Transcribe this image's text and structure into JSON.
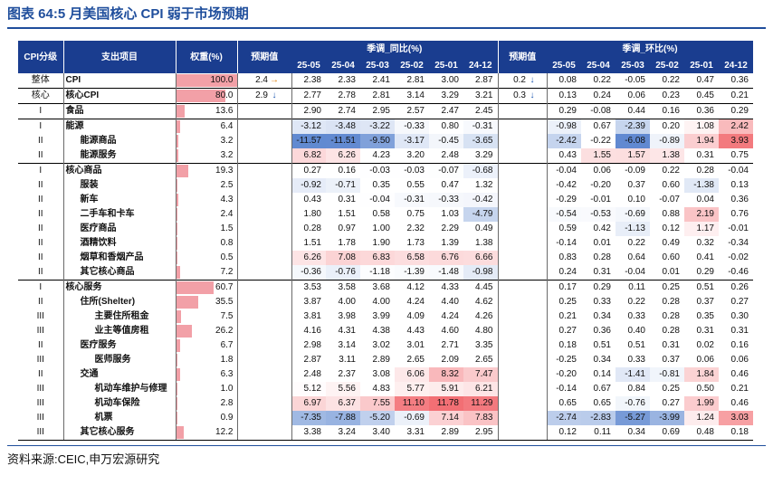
{
  "title": "图表 64:5 月美国核心 CPI 弱于市场预期",
  "source": "资料来源:CEIC,申万宏源研究",
  "headers": {
    "level": "CPI分级",
    "item": "支出项目",
    "weight": "权重(%)",
    "expected": "预期值",
    "yoy_group": "季调_同比(%)",
    "mom_group": "季调_环比(%)",
    "periods": [
      "25-05",
      "25-04",
      "25-03",
      "25-02",
      "25-01",
      "24-12"
    ]
  },
  "colors": {
    "header": "#1a3d8f",
    "weight_bar": "#f2a0a7",
    "up_arrow": "#e07b00",
    "down_arrow": "#1a55b0"
  },
  "rows": [
    {
      "level": "整体",
      "name": "CPI",
      "indent": 0,
      "weight": 100.0,
      "weight_label": "100.0",
      "yoy_exp": "2.4",
      "yoy_arrow": "→",
      "mom_exp": "0.2",
      "mom_arrow": "↓",
      "yoy": [
        2.38,
        2.33,
        2.41,
        2.81,
        3.0,
        2.87
      ],
      "yoy_label": [
        "2.38",
        "2.33",
        "2.41",
        "2.81",
        "3.00",
        "2.87"
      ],
      "mom": [
        0.08,
        0.22,
        -0.05,
        0.22,
        0.47,
        0.36
      ],
      "mom_label": [
        "0.08",
        "0.22",
        "-0.05",
        "0.22",
        "0.47",
        "0.36"
      ],
      "style": ""
    },
    {
      "level": "核心",
      "name": "核心CPI",
      "indent": 0,
      "weight": 80.0,
      "weight_label": "80.0",
      "yoy_exp": "2.9",
      "yoy_arrow": "↓",
      "mom_exp": "0.3",
      "mom_arrow": "↓",
      "yoy": [
        2.77,
        2.78,
        2.81,
        3.14,
        3.29,
        3.21
      ],
      "yoy_label": [
        "2.77",
        "2.78",
        "2.81",
        "3.14",
        "3.29",
        "3.21"
      ],
      "mom": [
        0.13,
        0.24,
        0.06,
        0.23,
        0.45,
        0.21
      ],
      "mom_label": [
        "0.13",
        "0.24",
        "0.06",
        "0.23",
        "0.45",
        "0.21"
      ],
      "style": "thin"
    },
    {
      "level": "I",
      "name": "食品",
      "indent": 0,
      "weight": 13.6,
      "weight_label": "13.6",
      "yoy_exp": "",
      "yoy_arrow": "",
      "mom_exp": "",
      "mom_arrow": "",
      "yoy": [
        2.9,
        2.74,
        2.95,
        2.57,
        2.47,
        2.45
      ],
      "yoy_label": [
        "2.90",
        "2.74",
        "2.95",
        "2.57",
        "2.47",
        "2.45"
      ],
      "mom": [
        0.29,
        -0.08,
        0.44,
        0.16,
        0.36,
        0.29
      ],
      "mom_label": [
        "0.29",
        "-0.08",
        "0.44",
        "0.16",
        "0.36",
        "0.29"
      ],
      "style": "sep"
    },
    {
      "level": "I",
      "name": "能源",
      "indent": 0,
      "weight": 6.4,
      "weight_label": "6.4",
      "yoy_exp": "",
      "yoy_arrow": "",
      "mom_exp": "",
      "mom_arrow": "",
      "yoy": [
        -3.12,
        -3.48,
        -3.22,
        -0.33,
        0.8,
        -0.31
      ],
      "yoy_label": [
        "-3.12",
        "-3.48",
        "-3.22",
        "-0.33",
        "0.80",
        "-0.31"
      ],
      "mom": [
        -0.98,
        0.67,
        -2.39,
        0.2,
        1.08,
        2.42
      ],
      "mom_label": [
        "-0.98",
        "0.67",
        "-2.39",
        "0.20",
        "1.08",
        "2.42"
      ],
      "style": "sep"
    },
    {
      "level": "II",
      "name": "能源商品",
      "indent": 1,
      "weight": 3.2,
      "weight_label": "3.2",
      "yoy_exp": "",
      "yoy_arrow": "",
      "mom_exp": "",
      "mom_arrow": "",
      "yoy": [
        -11.57,
        -11.51,
        -9.5,
        -3.17,
        -0.45,
        -3.65
      ],
      "yoy_label": [
        "-11.57",
        "-11.51",
        "-9.50",
        "-3.17",
        "-0.45",
        "-3.65"
      ],
      "mom": [
        -2.42,
        -0.22,
        -6.08,
        -0.89,
        1.94,
        3.93
      ],
      "mom_label": [
        "-2.42",
        "-0.22",
        "-6.08",
        "-0.89",
        "1.94",
        "3.93"
      ],
      "style": ""
    },
    {
      "level": "II",
      "name": "能源服务",
      "indent": 1,
      "weight": 3.2,
      "weight_label": "3.2",
      "yoy_exp": "",
      "yoy_arrow": "",
      "mom_exp": "",
      "mom_arrow": "",
      "yoy": [
        6.82,
        6.26,
        4.23,
        3.2,
        2.48,
        3.29
      ],
      "yoy_label": [
        "6.82",
        "6.26",
        "4.23",
        "3.20",
        "2.48",
        "3.29"
      ],
      "mom": [
        0.43,
        1.55,
        1.57,
        1.38,
        0.31,
        0.75
      ],
      "mom_label": [
        "0.43",
        "1.55",
        "1.57",
        "1.38",
        "0.31",
        "0.75"
      ],
      "style": ""
    },
    {
      "level": "I",
      "name": "核心商品",
      "indent": 0,
      "weight": 19.3,
      "weight_label": "19.3",
      "yoy_exp": "",
      "yoy_arrow": "",
      "mom_exp": "",
      "mom_arrow": "",
      "yoy": [
        0.27,
        0.16,
        -0.03,
        -0.03,
        -0.07,
        -0.68
      ],
      "yoy_label": [
        "0.27",
        "0.16",
        "-0.03",
        "-0.03",
        "-0.07",
        "-0.68"
      ],
      "mom": [
        -0.04,
        0.06,
        -0.09,
        0.22,
        0.28,
        -0.04
      ],
      "mom_label": [
        "-0.04",
        "0.06",
        "-0.09",
        "0.22",
        "0.28",
        "-0.04"
      ],
      "style": "sep"
    },
    {
      "level": "II",
      "name": "服装",
      "indent": 1,
      "weight": 2.5,
      "weight_label": "2.5",
      "yoy_exp": "",
      "yoy_arrow": "",
      "mom_exp": "",
      "mom_arrow": "",
      "yoy": [
        -0.92,
        -0.71,
        0.35,
        0.55,
        0.47,
        1.32
      ],
      "yoy_label": [
        "-0.92",
        "-0.71",
        "0.35",
        "0.55",
        "0.47",
        "1.32"
      ],
      "mom": [
        -0.42,
        -0.2,
        0.37,
        0.6,
        -1.38,
        0.13
      ],
      "mom_label": [
        "-0.42",
        "-0.20",
        "0.37",
        "0.60",
        "-1.38",
        "0.13"
      ],
      "style": ""
    },
    {
      "level": "II",
      "name": "新车",
      "indent": 1,
      "weight": 4.3,
      "weight_label": "4.3",
      "yoy_exp": "",
      "yoy_arrow": "",
      "mom_exp": "",
      "mom_arrow": "",
      "yoy": [
        0.43,
        0.31,
        -0.04,
        -0.31,
        -0.33,
        -0.42
      ],
      "yoy_label": [
        "0.43",
        "0.31",
        "-0.04",
        "-0.31",
        "-0.33",
        "-0.42"
      ],
      "mom": [
        -0.29,
        -0.01,
        0.1,
        -0.07,
        0.04,
        0.36
      ],
      "mom_label": [
        "-0.29",
        "-0.01",
        "0.10",
        "-0.07",
        "0.04",
        "0.36"
      ],
      "style": ""
    },
    {
      "level": "II",
      "name": "二手车和卡车",
      "indent": 1,
      "weight": 2.4,
      "weight_label": "2.4",
      "yoy_exp": "",
      "yoy_arrow": "",
      "mom_exp": "",
      "mom_arrow": "",
      "yoy": [
        1.8,
        1.51,
        0.58,
        0.75,
        1.03,
        -4.79
      ],
      "yoy_label": [
        "1.80",
        "1.51",
        "0.58",
        "0.75",
        "1.03",
        "-4.79"
      ],
      "mom": [
        -0.54,
        -0.53,
        -0.69,
        0.88,
        2.19,
        0.76
      ],
      "mom_label": [
        "-0.54",
        "-0.53",
        "-0.69",
        "0.88",
        "2.19",
        "0.76"
      ],
      "style": ""
    },
    {
      "level": "II",
      "name": "医疗商品",
      "indent": 1,
      "weight": 1.5,
      "weight_label": "1.5",
      "yoy_exp": "",
      "yoy_arrow": "",
      "mom_exp": "",
      "mom_arrow": "",
      "yoy": [
        0.28,
        0.97,
        1.0,
        2.32,
        2.29,
        0.49
      ],
      "yoy_label": [
        "0.28",
        "0.97",
        "1.00",
        "2.32",
        "2.29",
        "0.49"
      ],
      "mom": [
        0.59,
        0.42,
        -1.13,
        0.12,
        1.17,
        -0.01
      ],
      "mom_label": [
        "0.59",
        "0.42",
        "-1.13",
        "0.12",
        "1.17",
        "-0.01"
      ],
      "style": ""
    },
    {
      "level": "II",
      "name": "酒精饮料",
      "indent": 1,
      "weight": 0.8,
      "weight_label": "0.8",
      "yoy_exp": "",
      "yoy_arrow": "",
      "mom_exp": "",
      "mom_arrow": "",
      "yoy": [
        1.51,
        1.78,
        1.9,
        1.73,
        1.39,
        1.38
      ],
      "yoy_label": [
        "1.51",
        "1.78",
        "1.90",
        "1.73",
        "1.39",
        "1.38"
      ],
      "mom": [
        -0.14,
        0.01,
        0.22,
        0.49,
        0.32,
        -0.34
      ],
      "mom_label": [
        "-0.14",
        "0.01",
        "0.22",
        "0.49",
        "0.32",
        "-0.34"
      ],
      "style": ""
    },
    {
      "level": "II",
      "name": "烟草和香烟产品",
      "indent": 1,
      "weight": 0.5,
      "weight_label": "0.5",
      "yoy_exp": "",
      "yoy_arrow": "",
      "mom_exp": "",
      "mom_arrow": "",
      "yoy": [
        6.26,
        7.08,
        6.83,
        6.58,
        6.76,
        6.66
      ],
      "yoy_label": [
        "6.26",
        "7.08",
        "6.83",
        "6.58",
        "6.76",
        "6.66"
      ],
      "mom": [
        0.83,
        0.28,
        0.64,
        0.6,
        0.41,
        -0.02
      ],
      "mom_label": [
        "0.83",
        "0.28",
        "0.64",
        "0.60",
        "0.41",
        "-0.02"
      ],
      "style": ""
    },
    {
      "level": "II",
      "name": "其它核心商品",
      "indent": 1,
      "weight": 7.2,
      "weight_label": "7.2",
      "yoy_exp": "",
      "yoy_arrow": "",
      "mom_exp": "",
      "mom_arrow": "",
      "yoy": [
        -0.36,
        -0.76,
        -1.18,
        -1.39,
        -1.48,
        -0.98
      ],
      "yoy_label": [
        "-0.36",
        "-0.76",
        "-1.18",
        "-1.39",
        "-1.48",
        "-0.98"
      ],
      "mom": [
        0.24,
        0.31,
        -0.04,
        0.01,
        0.29,
        -0.46
      ],
      "mom_label": [
        "0.24",
        "0.31",
        "-0.04",
        "0.01",
        "0.29",
        "-0.46"
      ],
      "style": ""
    },
    {
      "level": "I",
      "name": "核心服务",
      "indent": 0,
      "weight": 60.7,
      "weight_label": "60.7",
      "yoy_exp": "",
      "yoy_arrow": "",
      "mom_exp": "",
      "mom_arrow": "",
      "yoy": [
        3.53,
        3.58,
        3.68,
        4.12,
        4.33,
        4.45
      ],
      "yoy_label": [
        "3.53",
        "3.58",
        "3.68",
        "4.12",
        "4.33",
        "4.45"
      ],
      "mom": [
        0.17,
        0.29,
        0.11,
        0.25,
        0.51,
        0.26
      ],
      "mom_label": [
        "0.17",
        "0.29",
        "0.11",
        "0.25",
        "0.51",
        "0.26"
      ],
      "style": "sep"
    },
    {
      "level": "II",
      "name": "住所(Shelter)",
      "indent": 1,
      "weight": 35.5,
      "weight_label": "35.5",
      "yoy_exp": "",
      "yoy_arrow": "",
      "mom_exp": "",
      "mom_arrow": "",
      "yoy": [
        3.87,
        4.0,
        4.0,
        4.24,
        4.4,
        4.62
      ],
      "yoy_label": [
        "3.87",
        "4.00",
        "4.00",
        "4.24",
        "4.40",
        "4.62"
      ],
      "mom": [
        0.25,
        0.33,
        0.22,
        0.28,
        0.37,
        0.27
      ],
      "mom_label": [
        "0.25",
        "0.33",
        "0.22",
        "0.28",
        "0.37",
        "0.27"
      ],
      "style": ""
    },
    {
      "level": "III",
      "name": "主要住所租金",
      "indent": 2,
      "weight": 7.5,
      "weight_label": "7.5",
      "yoy_exp": "",
      "yoy_arrow": "",
      "mom_exp": "",
      "mom_arrow": "",
      "yoy": [
        3.81,
        3.98,
        3.99,
        4.09,
        4.24,
        4.26
      ],
      "yoy_label": [
        "3.81",
        "3.98",
        "3.99",
        "4.09",
        "4.24",
        "4.26"
      ],
      "mom": [
        0.21,
        0.34,
        0.33,
        0.28,
        0.35,
        0.3
      ],
      "mom_label": [
        "0.21",
        "0.34",
        "0.33",
        "0.28",
        "0.35",
        "0.30"
      ],
      "style": ""
    },
    {
      "level": "III",
      "name": "业主等值房租",
      "indent": 2,
      "weight": 26.2,
      "weight_label": "26.2",
      "yoy_exp": "",
      "yoy_arrow": "",
      "mom_exp": "",
      "mom_arrow": "",
      "yoy": [
        4.16,
        4.31,
        4.38,
        4.43,
        4.6,
        4.8
      ],
      "yoy_label": [
        "4.16",
        "4.31",
        "4.38",
        "4.43",
        "4.60",
        "4.80"
      ],
      "mom": [
        0.27,
        0.36,
        0.4,
        0.28,
        0.31,
        0.31
      ],
      "mom_label": [
        "0.27",
        "0.36",
        "0.40",
        "0.28",
        "0.31",
        "0.31"
      ],
      "style": ""
    },
    {
      "level": "II",
      "name": "医疗服务",
      "indent": 1,
      "weight": 6.7,
      "weight_label": "6.7",
      "yoy_exp": "",
      "yoy_arrow": "",
      "mom_exp": "",
      "mom_arrow": "",
      "yoy": [
        2.98,
        3.14,
        3.02,
        3.01,
        2.71,
        3.35
      ],
      "yoy_label": [
        "2.98",
        "3.14",
        "3.02",
        "3.01",
        "2.71",
        "3.35"
      ],
      "mom": [
        0.18,
        0.51,
        0.51,
        0.31,
        0.02,
        0.16
      ],
      "mom_label": [
        "0.18",
        "0.51",
        "0.51",
        "0.31",
        "0.02",
        "0.16"
      ],
      "style": ""
    },
    {
      "level": "III",
      "name": "医师服务",
      "indent": 2,
      "weight": 1.8,
      "weight_label": "1.8",
      "yoy_exp": "",
      "yoy_arrow": "",
      "mom_exp": "",
      "mom_arrow": "",
      "yoy": [
        2.87,
        3.11,
        2.89,
        2.65,
        2.09,
        2.65
      ],
      "yoy_label": [
        "2.87",
        "3.11",
        "2.89",
        "2.65",
        "2.09",
        "2.65"
      ],
      "mom": [
        -0.25,
        0.34,
        0.33,
        0.37,
        0.06,
        0.06
      ],
      "mom_label": [
        "-0.25",
        "0.34",
        "0.33",
        "0.37",
        "0.06",
        "0.06"
      ],
      "style": ""
    },
    {
      "level": "II",
      "name": "交通",
      "indent": 1,
      "weight": 6.3,
      "weight_label": "6.3",
      "yoy_exp": "",
      "yoy_arrow": "",
      "mom_exp": "",
      "mom_arrow": "",
      "yoy": [
        2.48,
        2.37,
        3.08,
        6.06,
        8.32,
        7.47
      ],
      "yoy_label": [
        "2.48",
        "2.37",
        "3.08",
        "6.06",
        "8.32",
        "7.47"
      ],
      "mom": [
        -0.2,
        0.14,
        -1.41,
        -0.81,
        1.84,
        0.46
      ],
      "mom_label": [
        "-0.20",
        "0.14",
        "-1.41",
        "-0.81",
        "1.84",
        "0.46"
      ],
      "style": ""
    },
    {
      "level": "III",
      "name": "机动车维护与修理",
      "indent": 2,
      "weight": 1.0,
      "weight_label": "1.0",
      "yoy_exp": "",
      "yoy_arrow": "",
      "mom_exp": "",
      "mom_arrow": "",
      "yoy": [
        5.12,
        5.56,
        4.83,
        5.77,
        5.91,
        6.21
      ],
      "yoy_label": [
        "5.12",
        "5.56",
        "4.83",
        "5.77",
        "5.91",
        "6.21"
      ],
      "mom": [
        -0.14,
        0.67,
        0.84,
        0.25,
        0.5,
        0.21
      ],
      "mom_label": [
        "-0.14",
        "0.67",
        "0.84",
        "0.25",
        "0.50",
        "0.21"
      ],
      "style": ""
    },
    {
      "level": "III",
      "name": "机动车保险",
      "indent": 2,
      "weight": 2.8,
      "weight_label": "2.8",
      "yoy_exp": "",
      "yoy_arrow": "",
      "mom_exp": "",
      "mom_arrow": "",
      "yoy": [
        6.97,
        6.37,
        7.55,
        11.1,
        11.78,
        11.29
      ],
      "yoy_label": [
        "6.97",
        "6.37",
        "7.55",
        "11.10",
        "11.78",
        "11.29"
      ],
      "mom": [
        0.65,
        0.65,
        -0.76,
        0.27,
        1.99,
        0.46
      ],
      "mom_label": [
        "0.65",
        "0.65",
        "-0.76",
        "0.27",
        "1.99",
        "0.46"
      ],
      "style": ""
    },
    {
      "level": "III",
      "name": "机票",
      "indent": 2,
      "weight": 0.9,
      "weight_label": "0.9",
      "yoy_exp": "",
      "yoy_arrow": "",
      "mom_exp": "",
      "mom_arrow": "",
      "yoy": [
        -7.35,
        -7.88,
        -5.2,
        -0.69,
        7.14,
        7.83
      ],
      "yoy_label": [
        "-7.35",
        "-7.88",
        "-5.20",
        "-0.69",
        "7.14",
        "7.83"
      ],
      "mom": [
        -2.74,
        -2.83,
        -5.27,
        -3.99,
        1.24,
        3.03
      ],
      "mom_label": [
        "-2.74",
        "-2.83",
        "-5.27",
        "-3.99",
        "1.24",
        "3.03"
      ],
      "style": ""
    },
    {
      "level": "III",
      "name": "其它核心服务",
      "indent": 1,
      "weight": 12.2,
      "weight_label": "12.2",
      "yoy_exp": "",
      "yoy_arrow": "",
      "mom_exp": "",
      "mom_arrow": "",
      "yoy": [
        3.38,
        3.24,
        3.4,
        3.31,
        2.89,
        2.95
      ],
      "yoy_label": [
        "3.38",
        "3.24",
        "3.40",
        "3.31",
        "2.89",
        "2.95"
      ],
      "mom": [
        0.12,
        0.11,
        0.34,
        0.69,
        0.48,
        0.18
      ],
      "mom_label": [
        "0.12",
        "0.11",
        "0.34",
        "0.69",
        "0.48",
        "0.18"
      ],
      "style": "lastrow"
    }
  ]
}
